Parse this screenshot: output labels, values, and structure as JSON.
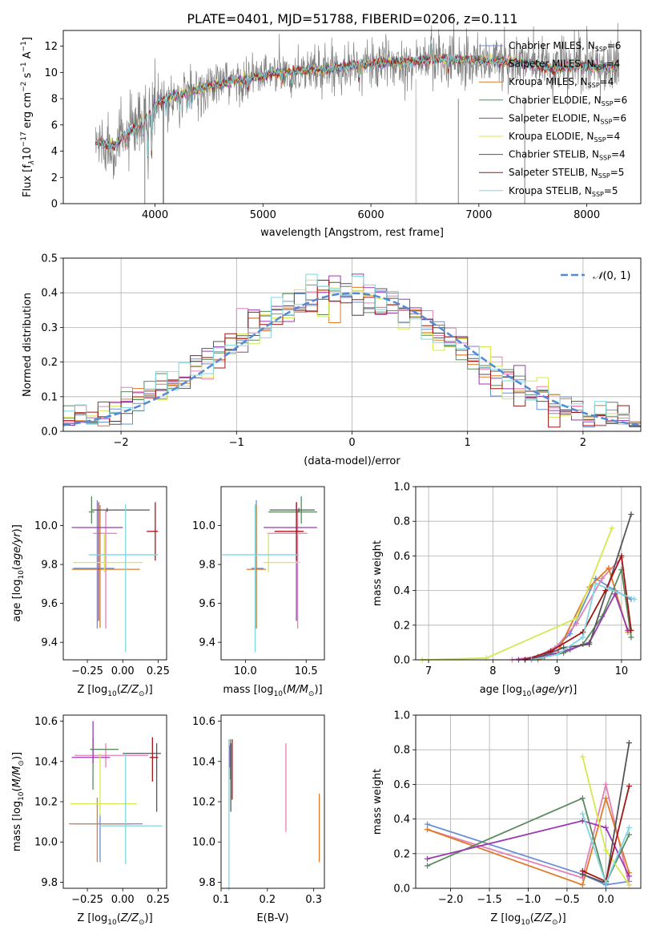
{
  "figure": {
    "title": "PLATE=0401, MJD=51788, FIBERID=0206, z=0.111",
    "colors": {
      "Chabrier MILES": "#6a8fd6",
      "Salpeter MILES": "#e57fb6",
      "Kroupa MILES": "#e07b2a",
      "Chabrier ELODIE": "#5a8a5e",
      "Salpeter ELODIE": "#9a3ab0",
      "Kroupa ELODIE": "#d6e84e",
      "Chabrier STELIB": "#555555",
      "Salpeter STELIB": "#a31515",
      "Kroupa STELIB": "#7fd6df",
      "data": "#808080",
      "gauss": "#5588d6"
    }
  },
  "chart_data": [
    {
      "id": "spectrum",
      "type": "line",
      "xlabel": "wavelength [Angstrom, rest frame]",
      "ylabel": "Flux [f_λ 10^-17 erg cm^-2 s^-1 A^-1]",
      "xlim": [
        3150,
        8500
      ],
      "ylim": [
        0,
        13.2
      ],
      "xticks": [
        "4000",
        "5000",
        "6000",
        "7000",
        "8000"
      ],
      "yticks": [
        "0",
        "2",
        "4",
        "6",
        "8",
        "10",
        "12"
      ],
      "grid": false,
      "legend_position": "top-right",
      "legend": [
        {
          "label": "Chabrier MILES, N",
          "sub": "SSP",
          "suffix": "=6"
        },
        {
          "label": "Salpeter MILES, N",
          "sub": "SSP",
          "suffix": "=4"
        },
        {
          "label": "Kroupa MILES, N",
          "sub": "SSP",
          "suffix": "=4"
        },
        {
          "label": "Chabrier ELODIE, N",
          "sub": "SSP",
          "suffix": "=6"
        },
        {
          "label": "Salpeter ELODIE, N",
          "sub": "SSP",
          "suffix": "=6"
        },
        {
          "label": "Kroupa ELODIE, N",
          "sub": "SSP",
          "suffix": "=4"
        },
        {
          "label": "Chabrier STELIB, N",
          "sub": "SSP",
          "suffix": "=4"
        },
        {
          "label": "Salpeter STELIB, N",
          "sub": "SSP",
          "suffix": "=5"
        },
        {
          "label": "Kroupa STELIB, N",
          "sub": "SSP",
          "suffix": "=5"
        }
      ],
      "continuum_knots": {
        "wavelength": [
          3450,
          3550,
          3640,
          3700,
          3800,
          3900,
          3950,
          4050,
          4150,
          4300,
          4500,
          4700,
          4900,
          5100,
          5300,
          5500,
          5700,
          5900,
          6100,
          6300,
          6500,
          6700,
          6900,
          7100,
          7300,
          7500,
          7700,
          7900,
          8100,
          8300
        ],
        "flux": [
          4.7,
          4.5,
          4.4,
          5.2,
          5.6,
          6.4,
          7.0,
          7.8,
          8.2,
          8.5,
          8.9,
          9.3,
          9.6,
          9.9,
          10.1,
          10.2,
          10.4,
          10.6,
          10.7,
          10.8,
          10.9,
          11.0,
          10.9,
          10.9,
          10.8,
          10.6,
          10.3,
          10.5,
          10.4,
          10.5
        ]
      }
    },
    {
      "id": "residuals",
      "type": "histogram",
      "xlabel": "(data-model)/error",
      "ylabel": "Normed distribution",
      "xlim": [
        -2.5,
        2.5
      ],
      "ylim": [
        0,
        0.5
      ],
      "xticks": [
        "−2",
        "−1",
        "0",
        "1",
        "2"
      ],
      "yticks": [
        "0.0",
        "0.1",
        "0.2",
        "0.3",
        "0.4",
        "0.5"
      ],
      "grid": true,
      "legend_position": "top-right",
      "legend_label": "N(0,1)",
      "bin_width": 0.1
    },
    {
      "id": "age_vs_Z",
      "type": "errorbar",
      "xlabel": "Z [log10(Z/Z⊙)]",
      "ylabel": "age  [log10(age/yr)]",
      "xlim": [
        -0.42,
        0.31
      ],
      "ylim": [
        9.31,
        10.2
      ],
      "xticks": [
        "−0.25",
        "0.00",
        "0.25"
      ],
      "yticks": [
        "9.4",
        "9.6",
        "9.8",
        "10.0"
      ],
      "points": [
        {
          "model": "Chabrier MILES",
          "x": -0.18,
          "xerr": [
            0.17,
            0.12
          ],
          "y": 9.78,
          "yerr": [
            0.31,
            0.35
          ]
        },
        {
          "model": "Salpeter MILES",
          "x": -0.12,
          "xerr": [
            0.09,
            0.08
          ],
          "y": 9.96,
          "yerr": [
            0.49,
            0.12
          ]
        },
        {
          "model": "Kroupa MILES",
          "x": -0.16,
          "xerr": [
            0.2,
            0.28
          ],
          "y": 9.775,
          "yerr": [
            0.3,
            0.33
          ]
        },
        {
          "model": "Chabrier ELODIE",
          "x": -0.22,
          "xerr": [
            0.02,
            0.02
          ],
          "y": 10.07,
          "yerr": [
            0.06,
            0.08
          ]
        },
        {
          "model": "Salpeter ELODIE",
          "x": -0.17,
          "xerr": [
            0.19,
            0.17
          ],
          "y": 9.99,
          "yerr": [
            0.48,
            0.13
          ]
        },
        {
          "model": "Kroupa ELODIE",
          "x": -0.13,
          "xerr": [
            0.22,
            0.27
          ],
          "y": 9.81,
          "yerr": [
            0.05,
            0.15
          ]
        },
        {
          "model": "Chabrier STELIB",
          "x": -0.11,
          "xerr": [
            0.11,
            0.3
          ],
          "y": 10.08,
          "yerr": [
            0.01,
            0.01
          ]
        },
        {
          "model": "Salpeter STELIB",
          "x": 0.23,
          "xerr": [
            0.06,
            0.02
          ],
          "y": 9.97,
          "yerr": [
            0.15,
            0.15
          ]
        },
        {
          "model": "Kroupa STELIB",
          "x": 0.02,
          "xerr": [
            0.26,
            0.23
          ],
          "y": 9.85,
          "yerr": [
            0.5,
            0.26
          ]
        }
      ]
    },
    {
      "id": "age_vs_mass",
      "type": "errorbar",
      "xlabel": "mass [log10(M/M⊙)]",
      "ylabel": "",
      "xlim": [
        9.8,
        10.65
      ],
      "ylim": [
        9.31,
        10.2
      ],
      "xticks": [
        "10.0",
        "10.5"
      ],
      "yticks": [
        "9.4",
        "9.6",
        "9.8",
        "10.0"
      ],
      "points": [
        {
          "model": "Chabrier MILES",
          "x": 10.09,
          "xerr": [
            0.04,
            0.06
          ],
          "y": 9.78,
          "yerr": [
            0.31,
            0.35
          ]
        },
        {
          "model": "Salpeter MILES",
          "x": 10.43,
          "xerr": [
            0.25,
            0.08
          ],
          "y": 9.96,
          "yerr": [
            0.49,
            0.12
          ]
        },
        {
          "model": "Kroupa MILES",
          "x": 10.09,
          "xerr": [
            0.08,
            0.08
          ],
          "y": 9.775,
          "yerr": [
            0.3,
            0.33
          ]
        },
        {
          "model": "Chabrier ELODIE",
          "x": 10.46,
          "xerr": [
            0.27,
            0.13
          ],
          "y": 10.07,
          "yerr": [
            0.06,
            0.08
          ]
        },
        {
          "model": "Salpeter ELODIE",
          "x": 10.42,
          "xerr": [
            0.27,
            0.17
          ],
          "y": 9.99,
          "yerr": [
            0.48,
            0.13
          ]
        },
        {
          "model": "Kroupa ELODIE",
          "x": 10.19,
          "xerr": [
            0.04,
            0.26
          ],
          "y": 9.81,
          "yerr": [
            0.05,
            0.15
          ]
        },
        {
          "model": "Chabrier STELIB",
          "x": 10.44,
          "xerr": [
            0.24,
            0.13
          ],
          "y": 10.08,
          "yerr": [
            0.01,
            0.01
          ]
        },
        {
          "model": "Salpeter STELIB",
          "x": 10.42,
          "xerr": [
            0.18,
            0.06
          ],
          "y": 9.97,
          "yerr": [
            0.15,
            0.15
          ]
        },
        {
          "model": "Kroupa STELIB",
          "x": 10.08,
          "xerr": [
            0.27,
            0.36
          ],
          "y": 9.85,
          "yerr": [
            0.5,
            0.26
          ]
        }
      ]
    },
    {
      "id": "weight_vs_age",
      "type": "line",
      "xlabel": "age  [log10(age/yr)]",
      "ylabel": "mass weight",
      "xlim": [
        6.8,
        10.3
      ],
      "ylim": [
        0,
        1
      ],
      "xticks": [
        "7",
        "8",
        "9",
        "10"
      ],
      "yticks": [
        "0.0",
        "0.2",
        "0.4",
        "0.6",
        "0.8",
        "1.0"
      ],
      "grid": true,
      "series": [
        {
          "model": "Chabrier MILES",
          "x": [
            8.6,
            8.9,
            9.2,
            9.6,
            9.9,
            10.15
          ],
          "y": [
            0.0,
            0.04,
            0.15,
            0.47,
            0.4,
            0.35
          ]
        },
        {
          "model": "Salpeter MILES",
          "x": [
            8.3,
            8.7,
            9.0,
            9.3,
            9.7,
            10.0
          ],
          "y": [
            0.0,
            0.02,
            0.08,
            0.21,
            0.47,
            0.59
          ]
        },
        {
          "model": "Kroupa MILES",
          "x": [
            8.7,
            9.0,
            9.5,
            9.8,
            10.1
          ],
          "y": [
            0.0,
            0.04,
            0.42,
            0.53,
            0.16
          ]
        },
        {
          "model": "Chabrier ELODIE",
          "x": [
            8.5,
            8.8,
            9.1,
            9.4,
            9.7,
            10.0,
            10.15
          ],
          "y": [
            0.0,
            0.02,
            0.04,
            0.09,
            0.25,
            0.52,
            0.13
          ]
        },
        {
          "model": "Salpeter ELODIE",
          "x": [
            8.4,
            8.8,
            9.2,
            9.5,
            9.9,
            10.1
          ],
          "y": [
            0.0,
            0.02,
            0.06,
            0.1,
            0.38,
            0.17
          ]
        },
        {
          "model": "Kroupa ELODIE",
          "x": [
            6.9,
            7.9,
            9.3,
            9.85
          ],
          "y": [
            0.0,
            0.01,
            0.24,
            0.76
          ]
        },
        {
          "model": "Chabrier STELIB",
          "x": [
            8.6,
            9.1,
            9.5,
            10.15
          ],
          "y": [
            0.0,
            0.07,
            0.09,
            0.84
          ]
        },
        {
          "model": "Salpeter STELIB",
          "x": [
            8.5,
            8.9,
            9.4,
            9.75,
            10.0,
            10.15
          ],
          "y": [
            0.0,
            0.05,
            0.16,
            0.4,
            0.6,
            0.17
          ]
        },
        {
          "model": "Kroupa STELIB",
          "x": [
            8.6,
            9.0,
            9.4,
            9.6,
            9.8,
            10.2
          ],
          "y": [
            0.0,
            0.03,
            0.13,
            0.44,
            0.41,
            0.35
          ]
        }
      ]
    },
    {
      "id": "mass_vs_Z",
      "type": "errorbar",
      "xlabel": "Z [log10(Z/Z⊙)]",
      "ylabel": "mass [log10(M/M⊙)]",
      "xlim": [
        -0.42,
        0.31
      ],
      "ylim": [
        9.77,
        10.63
      ],
      "xticks": [
        "−0.25",
        "0.00",
        "0.25"
      ],
      "yticks": [
        "9.8",
        "10.0",
        "10.2",
        "10.4",
        "10.6"
      ],
      "points": [
        {
          "model": "Chabrier MILES",
          "x": -0.16,
          "xerr": [
            0.19,
            0.3
          ],
          "y": 10.09,
          "yerr": [
            0.19,
            0.05
          ]
        },
        {
          "model": "Salpeter MILES",
          "x": -0.12,
          "xerr": [
            0.22,
            0.3
          ],
          "y": 10.43,
          "yerr": [
            0.06,
            0.06
          ]
        },
        {
          "model": "Kroupa MILES",
          "x": -0.18,
          "xerr": [
            0.2,
            0.23
          ],
          "y": 10.09,
          "yerr": [
            0.19,
            0.13
          ]
        },
        {
          "model": "Chabrier ELODIE",
          "x": -0.21,
          "xerr": [
            0.02,
            0.18
          ],
          "y": 10.46,
          "yerr": [
            0.2,
            0.06
          ]
        },
        {
          "model": "Salpeter ELODIE",
          "x": -0.21,
          "xerr": [
            0.15,
            0.12
          ],
          "y": 10.42,
          "yerr": [
            0.03,
            0.18
          ]
        },
        {
          "model": "Kroupa ELODIE",
          "x": -0.16,
          "xerr": [
            0.21,
            0.26
          ],
          "y": 10.19,
          "yerr": [
            0.06,
            0.25
          ]
        },
        {
          "model": "Chabrier STELIB",
          "x": 0.24,
          "xerr": [
            0.24,
            0.03
          ],
          "y": 10.44,
          "yerr": [
            0.29,
            0.05
          ]
        },
        {
          "model": "Salpeter STELIB",
          "x": 0.21,
          "xerr": [
            0.02,
            0.04
          ],
          "y": 10.42,
          "yerr": [
            0.12,
            0.1
          ]
        },
        {
          "model": "Kroupa STELIB",
          "x": 0.02,
          "xerr": [
            0.18,
            0.26
          ],
          "y": 10.08,
          "yerr": [
            0.19,
            0.36
          ]
        }
      ]
    },
    {
      "id": "mass_vs_ebv",
      "type": "errorbar",
      "xlabel": "E(B-V)",
      "ylabel": "",
      "xlim": [
        0.1,
        0.323
      ],
      "ylim": [
        9.77,
        10.63
      ],
      "xticks": [
        "0.1",
        "0.2",
        "0.3"
      ],
      "yticks": [
        "9.8",
        "10.0",
        "10.2",
        "10.4",
        "10.6"
      ],
      "points": [
        {
          "model": "Salpeter MILES",
          "x": 0.24,
          "xerr": [
            0,
            0
          ],
          "y": 10.43,
          "yerr": [
            0.38,
            0.06
          ]
        },
        {
          "model": "Kroupa MILES",
          "x": 0.312,
          "xerr": [
            0,
            0
          ],
          "y": 10.09,
          "yerr": [
            0.19,
            0.15
          ]
        },
        {
          "model": "Chabrier ELODIE",
          "x": 0.12,
          "xerr": [
            0,
            0
          ],
          "y": 10.46,
          "yerr": [
            0.15,
            0.05
          ]
        },
        {
          "model": "Salpeter ELODIE",
          "x": 0.119,
          "xerr": [
            0,
            0
          ],
          "y": 10.42,
          "yerr": [
            0.05,
            0.06
          ]
        },
        {
          "model": "Chabrier STELIB",
          "x": 0.121,
          "xerr": [
            0,
            0
          ],
          "y": 10.44,
          "yerr": [
            0.29,
            0.05
          ]
        },
        {
          "model": "Salpeter STELIB",
          "x": 0.124,
          "xerr": [
            0,
            0
          ],
          "y": 10.42,
          "yerr": [
            0.21,
            0.09
          ]
        },
        {
          "model": "Kroupa STELIB",
          "x": 0.117,
          "xerr": [
            0,
            0
          ],
          "y": 10.08,
          "yerr": [
            0.32,
            0.43
          ]
        }
      ]
    },
    {
      "id": "weight_vs_Z",
      "type": "line",
      "xlabel": "Z [log10(Z/Z⊙)]",
      "ylabel": "mass weight",
      "xlim": [
        -2.45,
        0.45
      ],
      "ylim": [
        0,
        1
      ],
      "xticks": [
        "−2.0",
        "−1.5",
        "−1.0",
        "−0.5",
        "0.0"
      ],
      "yticks": [
        "0.0",
        "0.2",
        "0.4",
        "0.6",
        "0.8",
        "1.0"
      ],
      "grid": true,
      "series": [
        {
          "model": "Chabrier MILES",
          "x": [
            -2.3,
            -0.3,
            0.0,
            0.3
          ],
          "y": [
            0.37,
            0.08,
            0.02,
            0.04
          ]
        },
        {
          "model": "Salpeter MILES",
          "x": [
            -2.3,
            -0.3,
            0.0,
            0.3
          ],
          "y": [
            0.34,
            0.06,
            0.6,
            0.02
          ]
        },
        {
          "model": "Kroupa MILES",
          "x": [
            -2.3,
            -0.3,
            0.0,
            0.3
          ],
          "y": [
            0.34,
            0.02,
            0.52,
            0.09
          ]
        },
        {
          "model": "Chabrier ELODIE",
          "x": [
            -2.3,
            -0.3,
            0.0,
            0.3
          ],
          "y": [
            0.13,
            0.52,
            0.03,
            0.31
          ]
        },
        {
          "model": "Salpeter ELODIE",
          "x": [
            -2.3,
            -0.3,
            0.0,
            0.3
          ],
          "y": [
            0.17,
            0.39,
            0.35,
            0.07
          ]
        },
        {
          "model": "Kroupa ELODIE",
          "x": [
            -0.3,
            0.0,
            0.3
          ],
          "y": [
            0.76,
            0.22,
            0.02
          ]
        },
        {
          "model": "Chabrier STELIB",
          "x": [
            -0.3,
            0.0,
            0.3
          ],
          "y": [
            0.08,
            0.03,
            0.84
          ]
        },
        {
          "model": "Salpeter STELIB",
          "x": [
            -0.3,
            0.0,
            0.3
          ],
          "y": [
            0.1,
            0.04,
            0.59
          ]
        },
        {
          "model": "Kroupa STELIB",
          "x": [
            -0.3,
            0.0,
            0.3
          ],
          "y": [
            0.43,
            0.03,
            0.35
          ]
        }
      ]
    }
  ]
}
